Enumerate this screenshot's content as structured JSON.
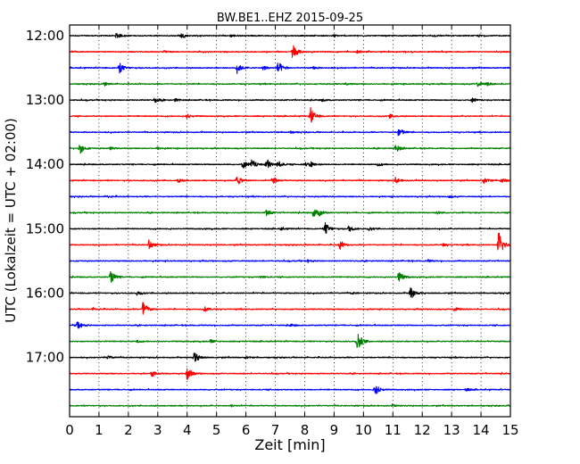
{
  "chart_data": {
    "type": "line",
    "subtype": "dayplot-seismogram",
    "title": "BW.BE1..EHZ 2015-09-25",
    "xlabel": "Zeit  [min]",
    "ylabel": "UTC (Lokalzeit = UTC + 02:00)",
    "xlim": [
      0,
      15
    ],
    "x_ticks": [
      "0",
      "1",
      "2",
      "3",
      "4",
      "5",
      "6",
      "7",
      "8",
      "9",
      "10",
      "11",
      "12",
      "13",
      "14",
      "15"
    ],
    "y_tick_labels": [
      "12:00",
      "13:00",
      "14:00",
      "15:00",
      "16:00",
      "17:00"
    ],
    "minutes_per_trace": 15,
    "grid": "vertical dotted at each minute",
    "colors": [
      "#000000",
      "#ff0000",
      "#0000ff",
      "#008000"
    ],
    "traces": [
      {
        "start": "12:00",
        "events": [
          [
            1.6,
            0.35
          ],
          [
            3.8,
            0.3
          ],
          [
            5.5,
            0.15
          ],
          [
            9.0,
            0.12
          ],
          [
            12.4,
            0.12
          ],
          [
            13.9,
            0.12
          ]
        ]
      },
      {
        "start": "12:15",
        "events": [
          [
            7.6,
            1.0
          ],
          [
            9.8,
            0.2
          ],
          [
            3.2,
            0.12
          ]
        ]
      },
      {
        "start": "12:30",
        "events": [
          [
            1.7,
            0.65
          ],
          [
            5.7,
            0.6
          ],
          [
            7.1,
            0.8
          ],
          [
            6.6,
            0.3
          ],
          [
            8.3,
            0.15
          ]
        ]
      },
      {
        "start": "12:45",
        "events": [
          [
            1.2,
            0.2
          ],
          [
            13.9,
            0.3
          ],
          [
            14.2,
            0.2
          ],
          [
            9.4,
            0.12
          ]
        ]
      },
      {
        "start": "13:00",
        "events": [
          [
            2.9,
            0.35
          ],
          [
            3.6,
            0.2
          ],
          [
            13.7,
            0.25
          ],
          [
            8.6,
            0.15
          ]
        ]
      },
      {
        "start": "13:15",
        "events": [
          [
            4.0,
            0.25
          ],
          [
            8.2,
            1.0
          ],
          [
            10.9,
            0.25
          ]
        ]
      },
      {
        "start": "13:30",
        "events": [
          [
            11.2,
            0.65
          ],
          [
            7.5,
            0.12
          ]
        ]
      },
      {
        "start": "13:45",
        "events": [
          [
            0.35,
            0.7
          ],
          [
            11.1,
            0.5
          ],
          [
            1.4,
            0.15
          ],
          [
            3.0,
            0.15
          ]
        ]
      },
      {
        "start": "14:00",
        "events": [
          [
            5.9,
            0.5
          ],
          [
            6.2,
            0.6
          ],
          [
            6.7,
            0.8
          ],
          [
            7.1,
            0.4
          ],
          [
            8.0,
            0.25
          ],
          [
            8.2,
            0.35
          ],
          [
            10.5,
            0.2
          ]
        ]
      },
      {
        "start": "14:15",
        "events": [
          [
            5.7,
            0.65
          ],
          [
            6.9,
            0.55
          ],
          [
            3.7,
            0.25
          ],
          [
            11.1,
            0.35
          ],
          [
            14.1,
            0.35
          ],
          [
            14.7,
            0.3
          ]
        ]
      },
      {
        "start": "14:30",
        "events": [
          [
            1.3,
            0.12
          ],
          [
            12.9,
            0.12
          ]
        ]
      },
      {
        "start": "14:45",
        "events": [
          [
            6.7,
            0.45
          ],
          [
            8.3,
            0.6
          ],
          [
            8.5,
            0.3
          ],
          [
            12.5,
            0.2
          ]
        ]
      },
      {
        "start": "15:00",
        "events": [
          [
            8.7,
            0.8
          ],
          [
            9.5,
            0.4
          ],
          [
            7.2,
            0.15
          ],
          [
            10.2,
            0.2
          ]
        ]
      },
      {
        "start": "15:15",
        "events": [
          [
            2.7,
            0.6
          ],
          [
            9.2,
            0.55
          ],
          [
            14.6,
            1.8
          ],
          [
            12.7,
            0.15
          ]
        ]
      },
      {
        "start": "15:30",
        "events": [
          [
            8.1,
            0.12
          ],
          [
            12.2,
            0.12
          ]
        ]
      },
      {
        "start": "15:45",
        "events": [
          [
            1.4,
            0.75
          ],
          [
            11.2,
            0.7
          ],
          [
            6.5,
            0.15
          ]
        ]
      },
      {
        "start": "16:00",
        "events": [
          [
            2.3,
            0.3
          ],
          [
            11.6,
            0.85
          ],
          [
            9.6,
            0.12
          ]
        ]
      },
      {
        "start": "16:15",
        "events": [
          [
            2.5,
            1.1
          ],
          [
            4.6,
            0.3
          ],
          [
            13.1,
            0.25
          ],
          [
            0.8,
            0.12
          ]
        ]
      },
      {
        "start": "16:30",
        "events": [
          [
            0.25,
            0.55
          ],
          [
            7.5,
            0.15
          ]
        ]
      },
      {
        "start": "16:45",
        "events": [
          [
            9.8,
            1.3
          ],
          [
            4.8,
            0.2
          ],
          [
            2.3,
            0.12
          ]
        ]
      },
      {
        "start": "17:00",
        "events": [
          [
            4.25,
            0.7
          ],
          [
            1.3,
            0.25
          ],
          [
            6.0,
            0.12
          ]
        ]
      },
      {
        "start": "17:15",
        "events": [
          [
            4.0,
            0.85
          ],
          [
            2.8,
            0.35
          ]
        ]
      },
      {
        "start": "17:30",
        "events": [
          [
            10.4,
            0.75
          ],
          [
            13.5,
            0.15
          ]
        ]
      },
      {
        "start": "17:45",
        "events": [
          [
            5.5,
            0.12
          ],
          [
            11.0,
            0.12
          ]
        ]
      }
    ]
  }
}
